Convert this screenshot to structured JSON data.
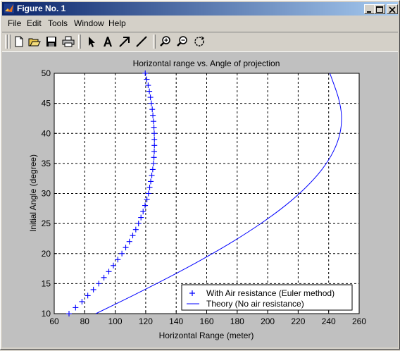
{
  "window": {
    "title": "Figure No. 1",
    "app_icon": "matlab-logo-icon",
    "controls": [
      "minimize-icon",
      "maximize-icon",
      "close-icon"
    ]
  },
  "menu": {
    "items": [
      "File",
      "Edit",
      "Tools",
      "Window",
      "Help"
    ]
  },
  "toolbar": {
    "tools": [
      "new-figure-icon",
      "open-file-icon",
      "save-icon",
      "print-icon",
      "edit-plot-arrow-icon",
      "insert-text-icon",
      "insert-arrow-icon",
      "insert-line-icon",
      "zoom-in-icon",
      "zoom-out-icon",
      "rotate-3d-icon"
    ]
  },
  "colors": {
    "figure_bg": "#c0c0c0",
    "series": "#0000ff",
    "title_gradient_start": "#0a246a",
    "title_gradient_end": "#a6caf0"
  },
  "chart_data": {
    "type": "line",
    "title": "Horizontal range vs. Angle of projection",
    "xlabel": "Horizontal Range (meter)",
    "ylabel": "Initial Angle (degree)",
    "xlim": [
      60,
      260
    ],
    "ylim": [
      10,
      50
    ],
    "xticks": [
      "60",
      "80",
      "100",
      "120",
      "140",
      "160",
      "180",
      "200",
      "220",
      "240",
      "260"
    ],
    "yticks": [
      "10",
      "15",
      "20",
      "25",
      "30",
      "35",
      "40",
      "45",
      "50"
    ],
    "grid": true,
    "legend_position": "bottom-right",
    "series": [
      {
        "name": "With Air resistance (Euler method)",
        "marker": "+",
        "x": [
          69.7,
          74.0,
          78.2,
          82.0,
          85.7,
          89.2,
          92.6,
          95.8,
          98.8,
          101.7,
          104.4,
          106.9,
          109.3,
          111.5,
          113.5,
          115.3,
          116.9,
          118.3,
          119.6,
          120.8,
          121.8,
          122.6,
          123.3,
          124.0,
          124.6,
          125.1,
          125.4,
          125.6,
          125.7,
          125.7,
          125.6,
          125.4,
          125.1,
          124.7,
          124.3,
          123.7,
          123.1,
          122.4,
          121.6,
          120.7,
          119.7
        ],
        "y": [
          10,
          11,
          12,
          13,
          14,
          15,
          16,
          17,
          18,
          19,
          20,
          21,
          22,
          23,
          24,
          25,
          26,
          27,
          28,
          29,
          30,
          31,
          32,
          33,
          34,
          35,
          36,
          37,
          38,
          39,
          40,
          41,
          42,
          43,
          44,
          45,
          46,
          47,
          48,
          49,
          50
        ]
      },
      {
        "name": "Theory (No air resistance)",
        "marker": "line",
        "x": [
          87.3,
          111.5,
          134.8,
          156.8,
          177.2,
          195.5,
          211.6,
          225.0,
          235.6,
          243.1,
          247.4,
          248.4,
          246.3,
          240.8
        ],
        "y": [
          10,
          13,
          16,
          19,
          22,
          25,
          28,
          31,
          34,
          37,
          40,
          43,
          46,
          50
        ]
      }
    ]
  }
}
